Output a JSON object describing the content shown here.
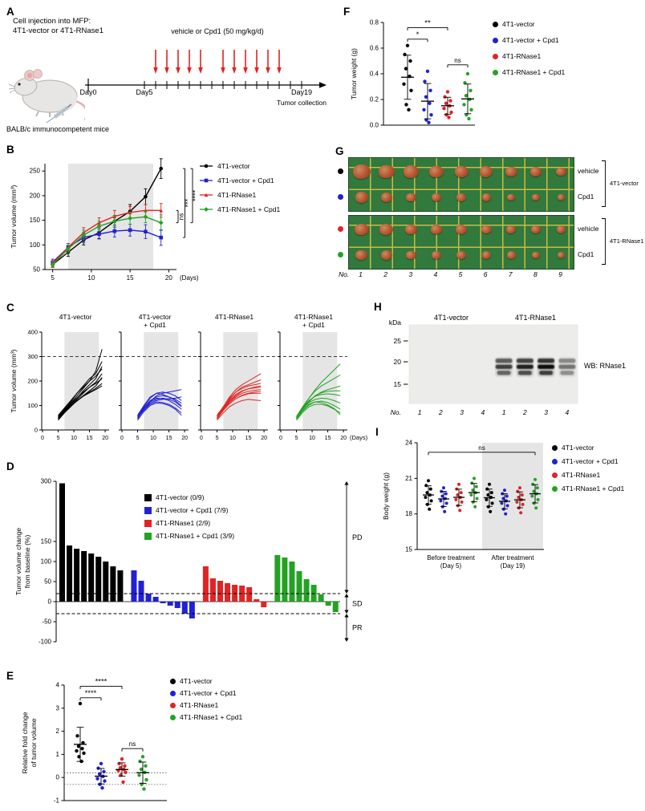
{
  "panel_labels": {
    "A": "A",
    "B": "B",
    "C": "C",
    "D": "D",
    "E": "E",
    "F": "F",
    "G": "G",
    "H": "H",
    "I": "I"
  },
  "colors": {
    "series": [
      "#000000",
      "#2121d4",
      "#e02424",
      "#24a224"
    ],
    "shade": "#e5e5e5",
    "treatment_arrow": "#e32222",
    "mat_green": "#31793c",
    "grid_yellow": "#c9bb45",
    "tumor_fill": "#b2532f"
  },
  "groups": [
    "4T1-vector",
    "4T1-vector + Cpd1",
    "4T1-RNase1",
    "4T1-RNase1 + Cpd1"
  ],
  "panelA": {
    "title1": "Cell injection into MFP:",
    "title2": "4T1-vector or 4T1-RNase1",
    "treatment": "vehicle or Cpd1 (50 mg/kg/d)",
    "day0": "Day0",
    "day5": "Day5",
    "day19": "Day19",
    "collection": "Tumor collection",
    "mice": "BALB/c immunocompetent mice",
    "treatment_days": [
      6,
      7,
      8,
      9,
      10,
      12,
      13,
      14,
      15,
      16,
      17
    ],
    "total_days": 19
  },
  "panelG": {
    "no_label": "No.",
    "numbers": [
      "1",
      "2",
      "3",
      "4",
      "5",
      "6",
      "7",
      "8",
      "9"
    ],
    "blocks": [
      {
        "group": "4T1-vector",
        "rows": [
          {
            "label": "vehicle",
            "dot": "#000000",
            "sizes": [
              22,
              20,
              19,
              18,
              17,
              16,
              15,
              14,
              13
            ]
          },
          {
            "label": "Cpd1",
            "dot": "#2121d4",
            "sizes": [
              16,
              14,
              13,
              12,
              12,
              11,
              10,
              10,
              9
            ]
          }
        ]
      },
      {
        "group": "4T1-RNase1",
        "rows": [
          {
            "label": "vehicle",
            "dot": "#e02424",
            "sizes": [
              18,
              17,
              15,
              14,
              14,
              13,
              12,
              12,
              11
            ]
          },
          {
            "label": "Cpd1",
            "dot": "#24a224",
            "sizes": [
              15,
              14,
              13,
              12,
              12,
              11,
              11,
              10,
              9
            ]
          }
        ]
      }
    ]
  },
  "panelH": {
    "kda": "kDa",
    "markers": [
      {
        "label": "25",
        "y": 50
      },
      {
        "label": "20",
        "y": 76
      },
      {
        "label": "15",
        "y": 104
      }
    ],
    "col_headers": [
      "4T1-vector",
      "4T1-RNase1"
    ],
    "wb": "WB: RNase1",
    "no_label": "No.",
    "lanes": [
      "1",
      "2",
      "3",
      "4",
      "1",
      "2",
      "3",
      "4"
    ],
    "band_lanes": [
      4,
      5,
      6,
      7
    ],
    "band_intensities": [
      0.75,
      0.9,
      1.0,
      0.5
    ]
  },
  "chart_data": [
    {
      "id": "B",
      "type": "line",
      "ylabel": "Tumor volume (mm³)",
      "xlabel": "(Days)",
      "x": [
        5,
        7,
        9,
        11,
        13,
        15,
        17,
        19
      ],
      "xticks": [
        5,
        10,
        15,
        20
      ],
      "yticks": [
        50,
        100,
        150,
        200,
        250
      ],
      "ylim": [
        50,
        265
      ],
      "xlim": [
        4,
        21
      ],
      "shade_x": [
        7,
        18
      ],
      "series": [
        {
          "name": "4T1-vector",
          "values": [
            60,
            85,
            110,
            125,
            148,
            168,
            198,
            255
          ],
          "errors": [
            6,
            8,
            10,
            12,
            12,
            14,
            16,
            20
          ]
        },
        {
          "name": "4T1-vector + Cpd1",
          "values": [
            65,
            95,
            115,
            122,
            128,
            130,
            127,
            115
          ],
          "errors": [
            6,
            8,
            10,
            10,
            12,
            12,
            14,
            16
          ]
        },
        {
          "name": "4T1-RNase1",
          "values": [
            62,
            95,
            125,
            145,
            158,
            166,
            170,
            170
          ],
          "errors": [
            6,
            8,
            10,
            10,
            12,
            12,
            12,
            14
          ]
        },
        {
          "name": "4T1-RNase1 + Cpd1",
          "values": [
            60,
            92,
            120,
            138,
            148,
            154,
            157,
            145
          ],
          "errors": [
            6,
            8,
            10,
            10,
            12,
            12,
            12,
            16
          ]
        }
      ],
      "comparisons": [
        {
          "a": 2,
          "b": 3,
          "label": "ns"
        },
        {
          "a": 0,
          "b": 1,
          "label": "***"
        },
        {
          "a": 0,
          "b": 3,
          "label": "****"
        }
      ]
    },
    {
      "id": "C",
      "type": "spaghetti",
      "ylabel": "Tumor volume (mm³)",
      "xlabel": "(Days)",
      "x": [
        5,
        7,
        9,
        11,
        13,
        15,
        17,
        19
      ],
      "xticks": [
        0,
        5,
        10,
        15,
        20
      ],
      "yticks": [
        0,
        100,
        200,
        300,
        400
      ],
      "ylim": [
        0,
        400
      ],
      "xlim": [
        0,
        21
      ],
      "shade_x": [
        7,
        18
      ],
      "dashed_y": 300,
      "subplots": [
        {
          "title": [
            "4T1-vector"
          ],
          "lines": [
            [
              50,
              80,
              110,
              140,
              170,
              200,
              240,
              330
            ],
            [
              55,
              85,
              115,
              150,
              180,
              210,
              230,
              280
            ],
            [
              45,
              75,
              105,
              130,
              160,
              185,
              210,
              260
            ],
            [
              60,
              90,
              120,
              150,
              175,
              200,
              220,
              250
            ],
            [
              50,
              78,
              100,
              125,
              150,
              175,
              195,
              230
            ],
            [
              40,
              70,
              95,
              120,
              140,
              160,
              180,
              215
            ],
            [
              55,
              82,
              108,
              132,
              155,
              175,
              190,
              210
            ],
            [
              45,
              72,
              98,
              118,
              138,
              155,
              170,
              190
            ],
            [
              50,
              75,
              100,
              120,
              138,
              152,
              165,
              180
            ]
          ]
        },
        {
          "title": [
            "4T1-vector",
            "+ Cpd1"
          ],
          "lines": [
            [
              55,
              95,
              130,
              150,
              155,
              150,
              140,
              120
            ],
            [
              50,
              90,
              120,
              135,
              140,
              135,
              125,
              110
            ],
            [
              60,
              100,
              135,
              150,
              145,
              135,
              120,
              100
            ],
            [
              45,
              85,
              115,
              125,
              130,
              125,
              115,
              95
            ],
            [
              55,
              90,
              120,
              130,
              128,
              120,
              105,
              85
            ],
            [
              50,
              80,
              105,
              115,
              112,
              105,
              90,
              70
            ],
            [
              40,
              75,
              100,
              110,
              108,
              100,
              85,
              60
            ],
            [
              55,
              88,
              115,
              140,
              150,
              155,
              160,
              165
            ],
            [
              50,
              85,
              110,
              120,
              125,
              128,
              130,
              135
            ]
          ]
        },
        {
          "title": [
            "4T1-RNase1"
          ],
          "lines": [
            [
              55,
              95,
              135,
              165,
              185,
              200,
              215,
              230
            ],
            [
              50,
              90,
              125,
              155,
              175,
              185,
              195,
              205
            ],
            [
              60,
              95,
              130,
              155,
              170,
              180,
              185,
              190
            ],
            [
              45,
              85,
              115,
              140,
              158,
              168,
              175,
              180
            ],
            [
              55,
              90,
              120,
              145,
              160,
              168,
              172,
              175
            ],
            [
              50,
              85,
              115,
              135,
              150,
              158,
              162,
              165
            ],
            [
              45,
              80,
              108,
              128,
              142,
              150,
              155,
              158
            ],
            [
              50,
              82,
              110,
              128,
              140,
              148,
              150,
              150
            ],
            [
              40,
              70,
              95,
              110,
              120,
              125,
              122,
              120
            ]
          ]
        },
        {
          "title": [
            "4T1-RNase1",
            "+ Cpd1"
          ],
          "lines": [
            [
              50,
              90,
              130,
              165,
              195,
              220,
              245,
              270
            ],
            [
              55,
              95,
              130,
              160,
              180,
              195,
              210,
              225
            ],
            [
              45,
              85,
              115,
              140,
              155,
              165,
              172,
              180
            ],
            [
              50,
              88,
              118,
              140,
              152,
              158,
              160,
              160
            ],
            [
              55,
              90,
              120,
              138,
              145,
              148,
              145,
              140
            ],
            [
              50,
              85,
              112,
              125,
              130,
              128,
              120,
              110
            ],
            [
              45,
              78,
              102,
              115,
              118,
              112,
              100,
              85
            ],
            [
              40,
              72,
              95,
              105,
              105,
              98,
              85,
              70
            ],
            [
              50,
              80,
              105,
              115,
              112,
              102,
              88,
              62
            ]
          ]
        }
      ]
    },
    {
      "id": "D",
      "type": "waterfall",
      "ylabel": [
        "Tumor volume change",
        "from baseline (%)"
      ],
      "yticks": [
        300,
        150,
        100,
        50,
        0,
        -50,
        -100
      ],
      "ylim": [
        -100,
        300
      ],
      "thresholds": [
        20,
        -30
      ],
      "zones": [
        "PD",
        "SD",
        "PR"
      ],
      "legend": [
        "4T1-vector (0/9)",
        "4T1-vector + Cpd1 (7/9)",
        "4T1-RNase1 (2/9)",
        "4T1-RNase1 + Cpd1 (3/9)"
      ],
      "values": [
        [
          295,
          140,
          132,
          126,
          120,
          112,
          100,
          88,
          78
        ],
        [
          78,
          52,
          20,
          12,
          -4,
          -10,
          -16,
          -30,
          -42
        ],
        [
          88,
          58,
          52,
          46,
          42,
          40,
          36,
          6,
          -14
        ],
        [
          116,
          110,
          100,
          76,
          56,
          42,
          18,
          -10,
          -26
        ]
      ]
    },
    {
      "id": "E",
      "type": "dot",
      "ylabel": [
        "Relative fold change",
        "of tumor volume"
      ],
      "yticks": [
        -1,
        0,
        1,
        2,
        3,
        4
      ],
      "ylim": [
        -1,
        4
      ],
      "hlines": [
        0.2,
        -0.3
      ],
      "legend": [
        "4T1-vector",
        "4T1-vector + Cpd1",
        "4T1-RNase1",
        "4T1-RNase1 + Cpd1"
      ],
      "values": [
        [
          3.2,
          1.8,
          1.5,
          1.35,
          1.25,
          1.15,
          1.05,
          0.9,
          0.7
        ],
        [
          0.6,
          0.4,
          0.25,
          0.15,
          0.05,
          -0.05,
          -0.15,
          -0.3,
          -0.45
        ],
        [
          0.8,
          0.6,
          0.5,
          0.42,
          0.35,
          0.3,
          0.22,
          0.1,
          -0.2
        ],
        [
          0.9,
          0.7,
          0.5,
          0.35,
          0.22,
          0.1,
          -0.1,
          -0.3,
          -0.5
        ]
      ],
      "comparisons": [
        {
          "a": 0,
          "b": 1,
          "label": "****",
          "y": 3.45
        },
        {
          "a": 0,
          "b": 2,
          "label": "****",
          "y": 3.95
        },
        {
          "a": 2,
          "b": 3,
          "label": "ns",
          "y": 1.25
        }
      ]
    },
    {
      "id": "F",
      "type": "dot",
      "ylabel": "Tumor weight (g)",
      "yticks": [
        0,
        0.2,
        0.4,
        0.6,
        0.8
      ],
      "ytick_labels": [
        "0.0",
        "0.2",
        "0.4",
        "0.6",
        "0.8"
      ],
      "ylim": [
        0,
        0.8
      ],
      "legend": [
        "4T1-vector",
        "4T1-vector + Cpd1",
        "4T1-RNase1",
        "4T1-RNase1 + Cpd1"
      ],
      "values": [
        [
          0.62,
          0.55,
          0.5,
          0.44,
          0.38,
          0.32,
          0.27,
          0.16,
          0.12
        ],
        [
          0.42,
          0.34,
          0.27,
          0.22,
          0.17,
          0.12,
          0.08,
          0.04,
          0.02
        ],
        [
          0.26,
          0.22,
          0.19,
          0.17,
          0.15,
          0.13,
          0.1,
          0.08,
          0.06
        ],
        [
          0.4,
          0.33,
          0.27,
          0.23,
          0.2,
          0.16,
          0.12,
          0.08,
          0.05
        ]
      ],
      "comparisons": [
        {
          "a": 0,
          "b": 1,
          "label": "*",
          "y": 0.67
        },
        {
          "a": 0,
          "b": 2,
          "label": "**",
          "y": 0.76
        },
        {
          "a": 2,
          "b": 3,
          "label": "ns",
          "y": 0.47
        }
      ]
    },
    {
      "id": "I",
      "type": "dot",
      "ylabel": "Body weight (g)",
      "yticks": [
        15,
        18,
        21,
        24
      ],
      "ylim": [
        15,
        24
      ],
      "legend": [
        "4T1-vector",
        "4T1-vector + Cpd1",
        "4T1-RNase1",
        "4T1-RNase1 + Cpd1"
      ],
      "clusters": [
        {
          "labels": [
            "Before treatment",
            "(Day 5)"
          ],
          "values": [
            [
              20.8,
              20.4,
              20.1,
              19.8,
              19.6,
              19.4,
              19.1,
              18.8,
              18.4
            ],
            [
              20.2,
              19.9,
              19.7,
              19.5,
              19.3,
              19.1,
              18.9,
              18.6,
              18.2
            ],
            [
              20.5,
              20.1,
              19.8,
              19.6,
              19.4,
              19.2,
              19.0,
              18.7,
              18.3
            ],
            [
              21.0,
              20.6,
              20.3,
              20.0,
              19.8,
              19.6,
              19.3,
              19.0,
              18.6
            ]
          ]
        },
        {
          "labels": [
            "After treatment",
            "(Day 19)"
          ],
          "shaded": true,
          "values": [
            [
              20.5,
              20.1,
              19.8,
              19.6,
              19.4,
              19.2,
              18.9,
              18.6,
              18.2
            ],
            [
              20.0,
              19.7,
              19.5,
              19.3,
              19.1,
              18.9,
              18.7,
              18.4,
              18.0
            ],
            [
              20.2,
              19.9,
              19.6,
              19.4,
              19.2,
              19.0,
              18.8,
              18.5,
              18.1
            ],
            [
              20.9,
              20.5,
              20.2,
              19.9,
              19.7,
              19.5,
              19.2,
              18.9,
              18.5
            ]
          ]
        }
      ],
      "comparisons": [
        {
          "a": 0,
          "b": 7,
          "label": "ns",
          "y": 23.2
        }
      ]
    }
  ]
}
